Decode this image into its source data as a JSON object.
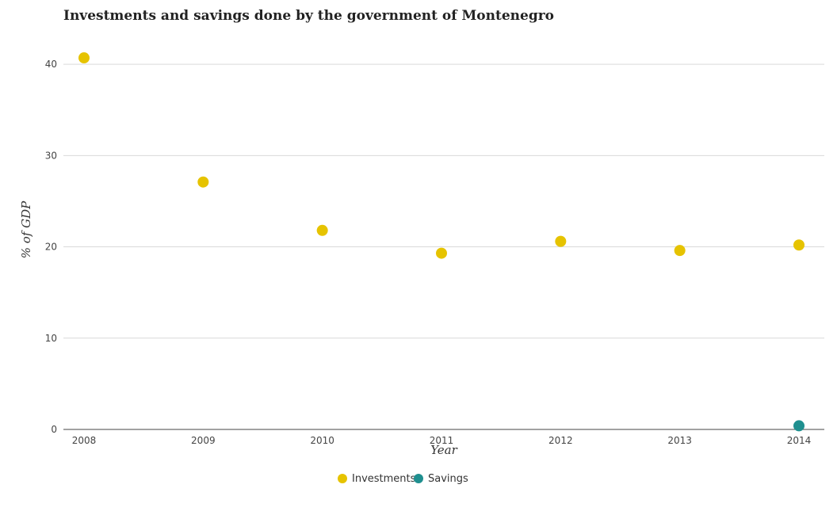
{
  "chart_data": {
    "type": "scatter",
    "title": "Investments and savings done by the government of Montenegro",
    "xlabel": "Year",
    "ylabel": "% of GDP",
    "x": [
      "2008",
      "2009",
      "2010",
      "2011",
      "2012",
      "2013",
      "2014"
    ],
    "ylim": [
      0,
      44
    ],
    "yticks": [
      0,
      10,
      20,
      30,
      40
    ],
    "grid": true,
    "legend_position": "bottom-center",
    "series": [
      {
        "name": "Investments",
        "color": "#e6c300",
        "values": [
          40.7,
          27.1,
          21.8,
          19.3,
          20.6,
          19.6,
          20.2
        ]
      },
      {
        "name": "Savings",
        "color": "#1f8f8f",
        "values": [
          null,
          null,
          null,
          null,
          null,
          null,
          0.4
        ]
      }
    ]
  }
}
